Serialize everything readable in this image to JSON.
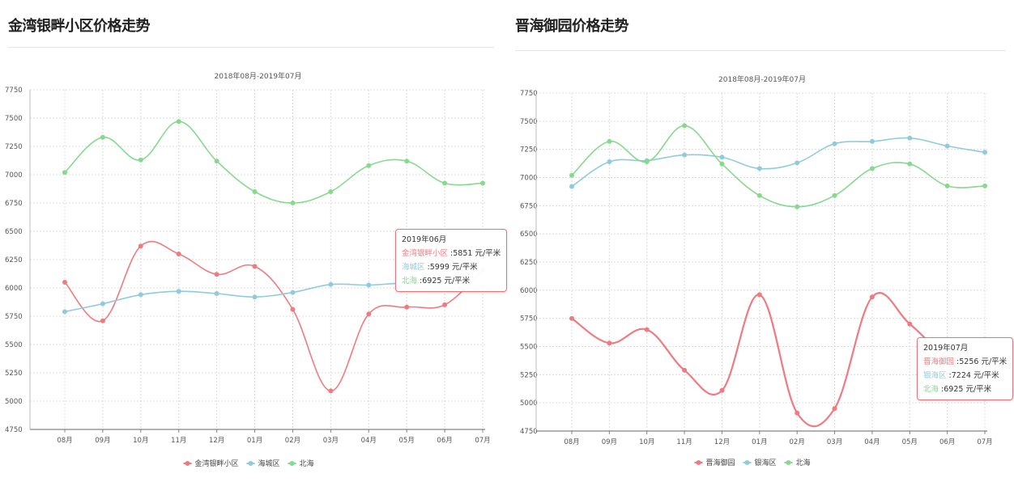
{
  "panels": [
    {
      "title": "金湾银畔小区价格走势",
      "tooltip": {
        "title": "2019年06月",
        "rows": [
          {
            "series": "金湾银畔小区",
            "value": "5851",
            "unit": "元/平米"
          },
          {
            "series": "海城区",
            "value": "5999",
            "unit": "元/平米"
          },
          {
            "series": "北海",
            "value": "6925",
            "unit": "元/平米"
          }
        ]
      }
    },
    {
      "title": "晋海御园价格走势",
      "tooltip": {
        "title": "2019年07月",
        "rows": [
          {
            "series": "晋海御园",
            "value": "5256",
            "unit": "元/平米"
          },
          {
            "series": "银海区",
            "value": "7224",
            "unit": "元/平米"
          },
          {
            "series": "北海",
            "value": "6925",
            "unit": "元/平米"
          }
        ]
      }
    }
  ],
  "chart_data": [
    {
      "type": "line",
      "title": "2018年08月-2019年07月",
      "categories": [
        "08月",
        "09月",
        "10月",
        "11月",
        "12月",
        "01月",
        "02月",
        "03月",
        "04月",
        "05月",
        "06月",
        "07月"
      ],
      "ylim": [
        4750,
        7750
      ],
      "yticks": [
        4750,
        5000,
        5250,
        5500,
        5750,
        6000,
        6250,
        6500,
        6750,
        7000,
        7250,
        7500,
        7750
      ],
      "grid": true,
      "legend": "bottom-center",
      "series": [
        {
          "name": "金湾银畔小区",
          "color": "#ef7b80",
          "values": [
            6050,
            5710,
            6370,
            6300,
            6120,
            6190,
            5810,
            5090,
            5770,
            5830,
            5851,
            6160
          ]
        },
        {
          "name": "海城区",
          "color": "#8fcbdc",
          "values": [
            5790,
            5860,
            5940,
            5970,
            5950,
            5920,
            5960,
            6030,
            6025,
            6040,
            5999,
            6005
          ]
        },
        {
          "name": "北海",
          "color": "#86d98e",
          "values": [
            7020,
            7330,
            7130,
            7470,
            7120,
            6850,
            6750,
            6850,
            7080,
            7120,
            6925,
            6925
          ]
        }
      ]
    },
    {
      "type": "line",
      "title": "2018年08月-2019年07月",
      "categories": [
        "08月",
        "09月",
        "10月",
        "11月",
        "12月",
        "01月",
        "02月",
        "03月",
        "04月",
        "05月",
        "06月",
        "07月"
      ],
      "ylim": [
        4750,
        7750
      ],
      "yticks": [
        4750,
        5000,
        5250,
        5500,
        5750,
        6000,
        6250,
        6500,
        6750,
        7000,
        7250,
        7500,
        7750
      ],
      "grid": true,
      "legend": "bottom-center",
      "series": [
        {
          "name": "晋海御园",
          "color": "#ef7b80",
          "values": [
            5750,
            5530,
            5650,
            5290,
            5110,
            5960,
            4910,
            4950,
            5940,
            5700,
            5400,
            5256
          ]
        },
        {
          "name": "银海区",
          "color": "#8fcbdc",
          "values": [
            6920,
            7140,
            7150,
            7200,
            7180,
            7080,
            7130,
            7300,
            7320,
            7350,
            7280,
            7224
          ]
        },
        {
          "name": "北海",
          "color": "#86d98e",
          "values": [
            7020,
            7320,
            7140,
            7460,
            7120,
            6840,
            6740,
            6840,
            7080,
            7120,
            6925,
            6925
          ]
        }
      ]
    }
  ]
}
